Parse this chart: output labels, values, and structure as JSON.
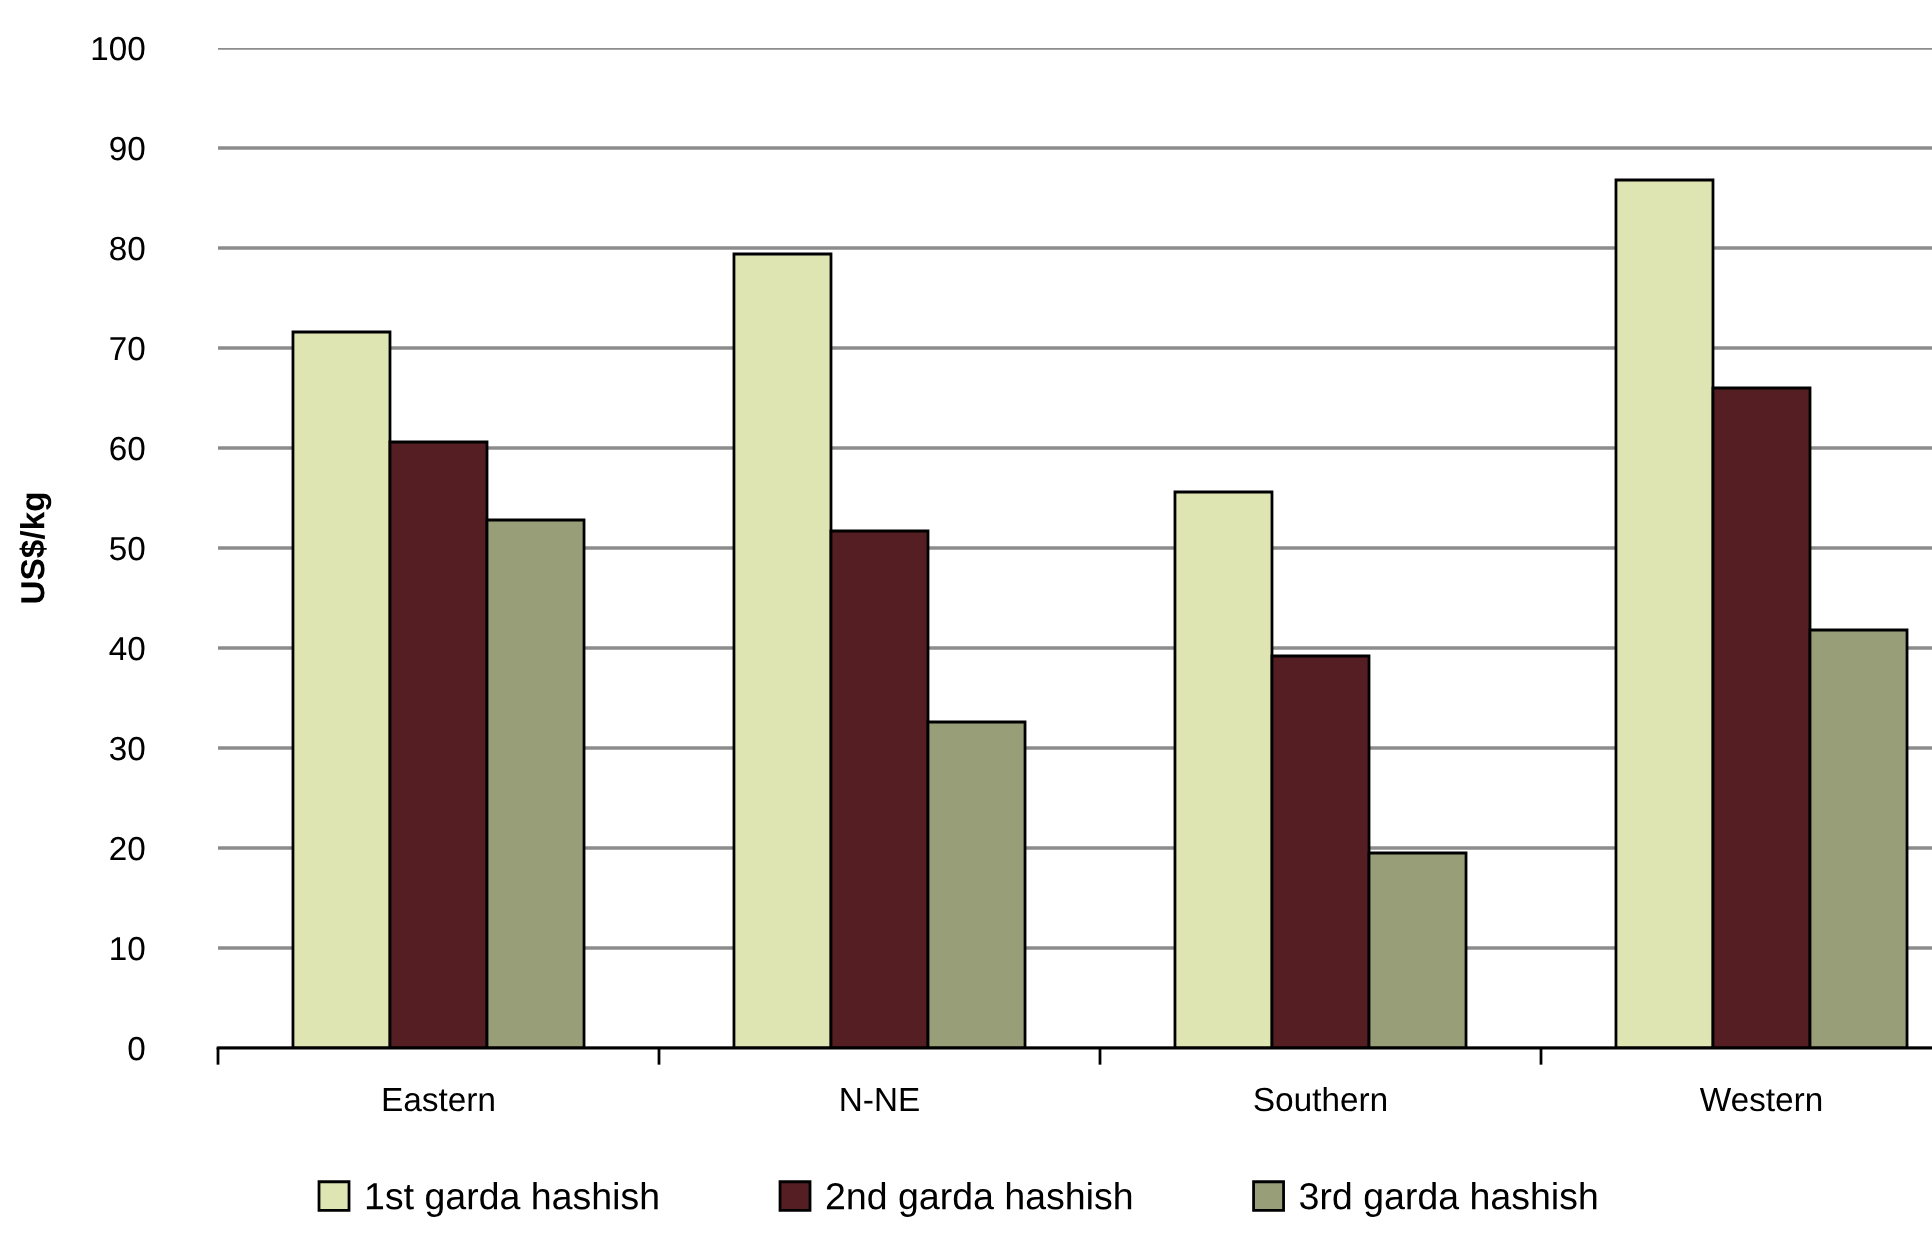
{
  "chart_data": {
    "type": "bar",
    "ylabel": "US$/kg",
    "categories": [
      "Eastern",
      "N-NE",
      "Southern",
      "Western"
    ],
    "series": [
      {
        "name": "1st garda hashish",
        "color": "#dfe5b2",
        "values": [
          71.6,
          79.4,
          55.6,
          86.8
        ]
      },
      {
        "name": "2nd garda hashish",
        "color": "#551e22",
        "values": [
          60.6,
          51.7,
          39.2,
          66.0
        ]
      },
      {
        "name": "3rd garda hashish",
        "color": "#989e77",
        "values": [
          52.8,
          32.6,
          19.5,
          41.8
        ]
      }
    ],
    "ylim": [
      0,
      100
    ],
    "yticks": [
      0,
      10,
      20,
      30,
      40,
      50,
      60,
      70,
      80,
      90,
      100
    ],
    "grid": "y",
    "legend": "bottom"
  }
}
